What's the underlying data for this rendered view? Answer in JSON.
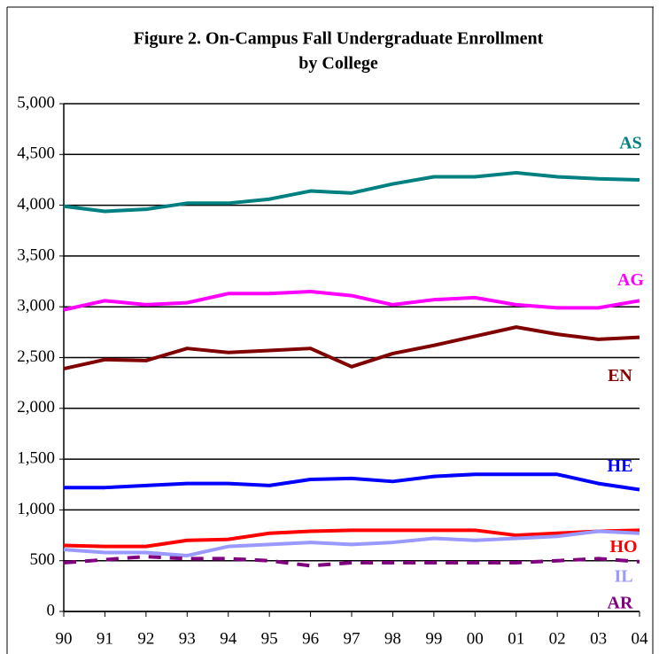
{
  "chart_data": {
    "type": "line",
    "title": [
      "Figure 2. On-Campus Fall Undergraduate Enrollment",
      "by College"
    ],
    "categories": [
      "90",
      "91",
      "92",
      "93",
      "94",
      "95",
      "96",
      "97",
      "98",
      "99",
      "00",
      "01",
      "02",
      "03",
      "04"
    ],
    "ylim": [
      0,
      5000
    ],
    "yticks": [
      0,
      500,
      {
        "value": 1000,
        "label": "1,000"
      },
      {
        "value": 1500,
        "label": "1,500"
      },
      {
        "value": 2000,
        "label": "2,000"
      },
      {
        "value": 2500,
        "label": "2,500"
      },
      {
        "value": 3000,
        "label": "3,000"
      },
      {
        "value": 3500,
        "label": "3,500"
      },
      {
        "value": 4000,
        "label": "4,000"
      },
      {
        "value": 4500,
        "label": "4,500"
      },
      {
        "value": 5000,
        "label": "5,000"
      }
    ],
    "grid": true,
    "series": [
      {
        "name": "AS",
        "color": "#008080",
        "values": [
          3990,
          3940,
          3960,
          4020,
          4020,
          4060,
          4140,
          4120,
          4210,
          4280,
          4280,
          4320,
          4280,
          4260,
          4250
        ]
      },
      {
        "name": "AG",
        "color": "#ff00ff",
        "values": [
          2970,
          3060,
          3020,
          3040,
          3130,
          3130,
          3150,
          3110,
          3020,
          3070,
          3090,
          3020,
          2990,
          2990,
          3060
        ]
      },
      {
        "name": "EN",
        "color": "#800000",
        "values": [
          2390,
          2480,
          2470,
          2590,
          2550,
          2570,
          2590,
          2410,
          2540,
          2620,
          2710,
          2800,
          2730,
          2680,
          2700
        ]
      },
      {
        "name": "HE",
        "color": "#0000ff",
        "values": [
          1220,
          1220,
          1240,
          1260,
          1260,
          1240,
          1300,
          1310,
          1280,
          1330,
          1350,
          1350,
          1350,
          1260,
          1200
        ]
      },
      {
        "name": "HO",
        "color": "#ff0000",
        "values": [
          650,
          640,
          640,
          700,
          710,
          770,
          790,
          800,
          800,
          800,
          800,
          750,
          770,
          790,
          800
        ]
      },
      {
        "name": "IL",
        "color": "#9999ff",
        "values": [
          610,
          580,
          580,
          550,
          640,
          660,
          680,
          660,
          680,
          720,
          700,
          720,
          740,
          790,
          770
        ]
      },
      {
        "name": "AR",
        "color": "#800080",
        "dashed": true,
        "values": [
          480,
          510,
          540,
          520,
          520,
          500,
          450,
          480,
          480,
          480,
          480,
          480,
          500,
          520,
          490
        ]
      }
    ]
  }
}
